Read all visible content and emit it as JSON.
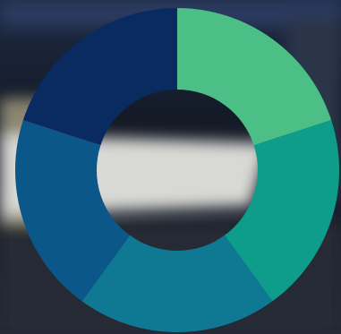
{
  "chart_data": {
    "type": "donut",
    "values": [
      20,
      20,
      20,
      20,
      20
    ],
    "colors": [
      "#4cbf87",
      "#0e9c8b",
      "#0f7993",
      "#0b578a",
      "#0a2b5f"
    ]
  }
}
